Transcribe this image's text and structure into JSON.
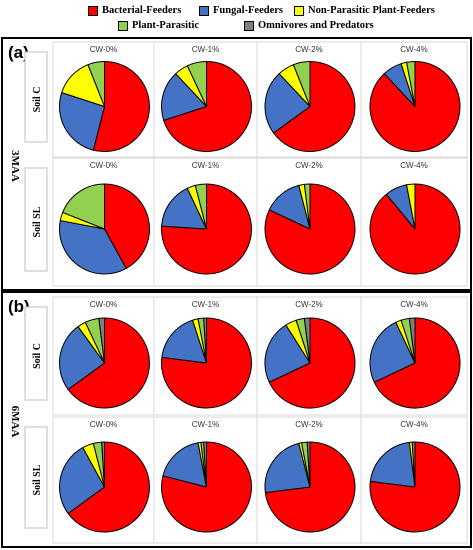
{
  "chart_data": {
    "type": "pie",
    "legend": {
      "placement": "top",
      "entries": [
        {
          "name": "Bacterial-Feeders",
          "color": "#ff0000"
        },
        {
          "name": "Fungal-Feeders",
          "color": "#4472c4"
        },
        {
          "name": "Non-Parasitic Plant-Feeders",
          "color": "#ffff00"
        },
        {
          "name": "Plant-Parasitic",
          "color": "#92d050"
        },
        {
          "name": "Omnivores and Predators",
          "color": "#7f7f7f"
        }
      ]
    },
    "categories": [
      "CW-0%",
      "CW-1%",
      "CW-2%",
      "CW-4%"
    ],
    "panels": [
      {
        "label": "(a)",
        "time": "3MAA",
        "rows": [
          {
            "soil": "Soil C",
            "pies": [
              [
                54,
                26,
                14,
                6,
                0
              ],
              [
                70,
                18,
                5,
                7,
                0
              ],
              [
                65,
                23,
                6,
                6,
                0
              ],
              [
                88,
                7,
                2,
                3,
                0
              ]
            ]
          },
          {
            "soil": "Soil SL",
            "pies": [
              [
                42,
                36,
                3,
                19,
                0
              ],
              [
                76,
                17,
                3,
                4,
                0
              ],
              [
                82,
                14,
                2,
                2,
                0
              ],
              [
                89,
                8,
                3,
                0,
                0
              ]
            ]
          }
        ]
      },
      {
        "label": "(b)",
        "time": "6MAA",
        "rows": [
          {
            "soil": "Soil C",
            "pies": [
              [
                65,
                25,
                3,
                5,
                2
              ],
              [
                77,
                18,
                2,
                2,
                1
              ],
              [
                68,
                23,
                4,
                3,
                2
              ],
              [
                68,
                25,
                2,
                3,
                2
              ]
            ]
          },
          {
            "soil": "Soil SL",
            "pies": [
              [
                65,
                27,
                4,
                3,
                1
              ],
              [
                79,
                18,
                1,
                1,
                1
              ],
              [
                73,
                23,
                1,
                2,
                1
              ],
              [
                77,
                21,
                1,
                0,
                1
              ]
            ]
          }
        ]
      }
    ]
  }
}
